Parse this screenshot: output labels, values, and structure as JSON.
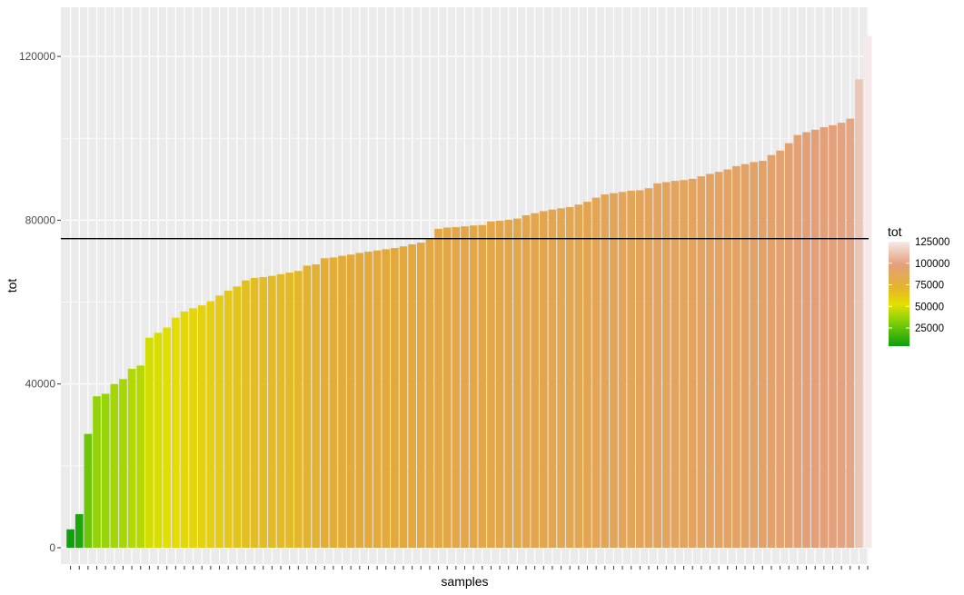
{
  "chart_data": {
    "type": "bar",
    "xlabel": "samples",
    "ylabel": "tot",
    "ylim": [
      -4000,
      132000
    ],
    "yticks": [
      "0",
      "40000",
      "80000",
      "120000"
    ],
    "ytick_values": [
      0,
      40000,
      80000,
      120000
    ],
    "grid": true,
    "hline": 75500,
    "legend": {
      "title": "tot",
      "position": "right",
      "labels": [
        "125000",
        "100000",
        "75000",
        "50000",
        "25000"
      ],
      "values": [
        125000,
        100000,
        75000,
        50000,
        25000
      ],
      "range": [
        4000,
        125000
      ]
    },
    "colors": {
      "low": "#0ca00c",
      "low_mid": "#8cd20a",
      "mid": "#e4e000",
      "mid_high": "#e3a93a",
      "high": "#e3a07a",
      "top": "#f5e9e9",
      "hline": "#000000",
      "panel": "#ebebeb",
      "grid": "#ffffff"
    },
    "values": [
      4500,
      8200,
      27800,
      37000,
      37600,
      40000,
      41200,
      43700,
      44500,
      51300,
      52500,
      53800,
      56200,
      57700,
      58500,
      59200,
      60200,
      61600,
      62800,
      63800,
      65300,
      65900,
      66100,
      66400,
      66800,
      67200,
      67600,
      68900,
      69200,
      70700,
      70900,
      71300,
      71600,
      72000,
      72300,
      72600,
      72900,
      73200,
      73600,
      74100,
      74500,
      75300,
      77900,
      78200,
      78300,
      78500,
      78700,
      78800,
      79700,
      79900,
      80100,
      80400,
      81200,
      81700,
      82200,
      82600,
      82900,
      83200,
      83800,
      84500,
      85500,
      86300,
      86600,
      86900,
      87200,
      87300,
      87800,
      89000,
      89300,
      89600,
      89800,
      90100,
      90700,
      91300,
      91800,
      92400,
      93200,
      93700,
      94200,
      94500,
      95900,
      97000,
      98800,
      100800,
      101500,
      102100,
      102700,
      103200,
      103800,
      104800,
      114400,
      125000
    ]
  }
}
